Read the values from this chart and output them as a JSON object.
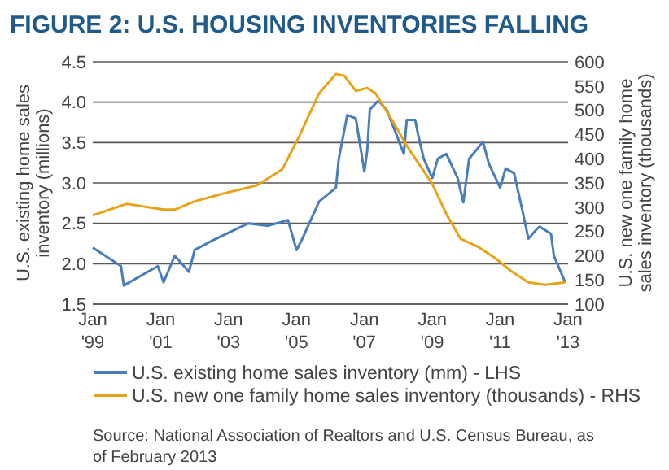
{
  "chart_data": {
    "type": "line",
    "title": "FIGURE 2: U.S. HOUSING INVENTORIES FALLING",
    "ylabel": "U.S. existing home sales inventory (millions)",
    "y2label": "U.S. new one family home sales inventory (thousands)",
    "annotations": [
      "Source: National Association of Realtors and U.S. Census Bureau, as of February 2013"
    ],
    "xlim": [
      "1999-01",
      "2013-01"
    ],
    "xticks": [
      {
        "value": "1999-01",
        "label": "Jan '99"
      },
      {
        "value": "2001-01",
        "label": "Jan '01"
      },
      {
        "value": "2003-01",
        "label": "Jan '03"
      },
      {
        "value": "2005-01",
        "label": "Jan '05"
      },
      {
        "value": "2007-01",
        "label": "Jan '07"
      },
      {
        "value": "2009-01",
        "label": "Jan '09"
      },
      {
        "value": "2011-01",
        "label": "Jan '11"
      },
      {
        "value": "2013-01",
        "label": "Jan '13"
      }
    ],
    "ylim": [
      1.5,
      4.5
    ],
    "yticks": [
      1.5,
      {
        "value": 2,
        "label": "2.0"
      },
      2.5,
      {
        "value": 3,
        "label": "3.0"
      },
      3.5,
      {
        "value": 4,
        "label": "4.0"
      },
      4.5
    ],
    "y2lim": [
      100,
      600
    ],
    "y2ticks": [
      100,
      150,
      200,
      250,
      300,
      350,
      400,
      450,
      500,
      550,
      600
    ],
    "grid": "y",
    "legend": "bottom",
    "line_style": "solid",
    "marker": "none",
    "series": [
      {
        "name": "U.S. existing home sales inventory (mm) - LHS",
        "color": "#4a7ebb",
        "x": [
          "1999-01",
          "1999-11",
          "1999-12",
          "2000-12",
          "2001-02",
          "2001-06",
          "2001-11",
          "2002-01",
          "2002-08",
          "2003-08",
          "2004-03",
          "2004-10",
          "2005-01",
          "2005-03",
          "2005-09",
          "2006-03",
          "2006-04",
          "2006-07",
          "2006-10",
          "2007-01",
          "2007-02",
          "2007-03",
          "2007-06",
          "2007-09",
          "2008-01",
          "2008-03",
          "2008-04",
          "2008-07",
          "2008-08",
          "2008-10",
          "2009-01",
          "2009-03",
          "2009-06",
          "2009-10",
          "2009-12",
          "2010-02",
          "2010-07",
          "2010-09",
          "2011-01",
          "2011-03",
          "2011-06",
          "2011-09",
          "2011-11",
          "2012-02",
          "2012-03",
          "2012-07",
          "2012-08",
          "2012-12"
        ],
        "values": [
          2.2,
          1.97,
          1.73,
          1.97,
          1.77,
          2.1,
          1.9,
          2.17,
          2.3,
          2.5,
          2.47,
          2.54,
          2.17,
          2.3,
          2.77,
          2.94,
          3.3,
          3.84,
          3.8,
          3.14,
          3.4,
          3.91,
          4.02,
          3.9,
          3.54,
          3.36,
          3.78,
          3.78,
          3.6,
          3.3,
          3.06,
          3.3,
          3.36,
          3.06,
          2.76,
          3.3,
          3.51,
          3.24,
          2.94,
          3.18,
          3.12,
          2.64,
          2.31,
          2.43,
          2.46,
          2.37,
          2.1,
          1.77
        ]
      },
      {
        "name": "U.S. new one family home sales inventory (thousands) - RHS",
        "color": "#e8a317",
        "axis": "y2",
        "x": [
          "1999-01",
          "2000-01",
          "2001-02",
          "2001-06",
          "2002-01",
          "2002-11",
          "2003-11",
          "2004-08",
          "2005-02",
          "2005-09",
          "2006-03",
          "2006-06",
          "2006-10",
          "2007-02",
          "2007-05",
          "2007-11",
          "2008-04",
          "2009-01",
          "2009-06",
          "2009-11",
          "2010-05",
          "2010-11",
          "2011-05",
          "2011-11",
          "2012-05",
          "2012-12"
        ],
        "values": [
          283,
          307,
          295,
          295,
          312,
          328,
          345,
          378,
          447,
          535,
          575,
          571,
          540,
          546,
          535,
          478,
          427,
          348,
          286,
          235,
          219,
          196,
          168,
          145,
          140,
          145
        ]
      }
    ]
  }
}
